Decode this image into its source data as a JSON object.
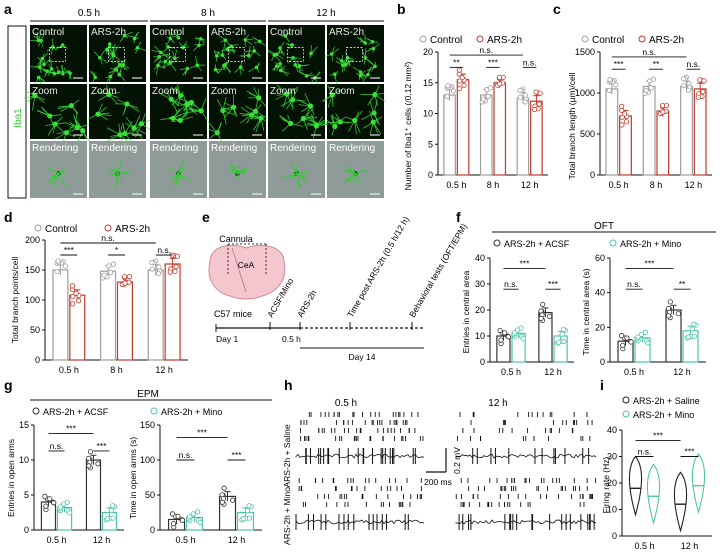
{
  "colors": {
    "control": "#9e9e9e",
    "ars": "#c0392b",
    "acsf": "#333333",
    "mino": "#4fc4a8",
    "saline": "#222222",
    "micro_green": "#39e039",
    "render_bg": "#8f9b98"
  },
  "panel_letters": [
    "a",
    "b",
    "c",
    "d",
    "e",
    "f",
    "g",
    "h",
    "i"
  ],
  "panelA": {
    "side_label": "Iba1",
    "times": [
      "0.5 h",
      "8 h",
      "12 h"
    ],
    "row1": [
      "Control",
      "ARS-2h",
      "Control",
      "ARS-2h",
      "Control",
      "ARS-2h"
    ],
    "row2_label": "Zoom",
    "row3_label": "Rendering"
  },
  "legend": {
    "control": "Control",
    "ars": "ARS-2h"
  },
  "sig": {
    "ns": "n.s.",
    "one": "*",
    "two": "**",
    "three": "***"
  },
  "panelB": {
    "ylabel": "Number of Iba1⁺ cells (/0.12 mm²)",
    "yticks": [
      "0",
      "5",
      "10",
      "15",
      "20"
    ],
    "xticks": [
      "0.5 h",
      "8 h",
      "12 h"
    ]
  },
  "panelC": {
    "ylabel": "Total branch length (μm)/cell",
    "yticks": [
      "0",
      "500",
      "1000",
      "1500"
    ],
    "xticks": [
      "0.5 h",
      "8 h",
      "12 h"
    ]
  },
  "panelD": {
    "ylabel": "Total branch points/cell",
    "yticks": [
      "0",
      "50",
      "100",
      "150",
      "200"
    ],
    "xticks": [
      "0.5 h",
      "8 h",
      "12 h"
    ]
  },
  "panelE": {
    "cannula": "Cannula",
    "cea": "CeA",
    "mice": "C57 mice",
    "events": [
      "ACSF/Mino",
      "ARS-2h",
      "Time post ARS-2h (0.5 h/12 h)",
      "Behavioral tests (OFT/EPM)"
    ],
    "day1": "Day 1",
    "t05": "0.5 h",
    "day14": "Day 14"
  },
  "panelF": {
    "title": "OFT",
    "legend_acsf": "ARS-2h + ACSF",
    "legend_mino": "ARS-2h + Mino",
    "ylabel1": "Entries in central area",
    "yticks1": [
      "0",
      "10",
      "20",
      "30",
      "40"
    ],
    "ylabel2": "Time in central area (s)",
    "yticks2": [
      "0",
      "20",
      "40",
      "60"
    ],
    "xticks": [
      "0.5 h",
      "12 h"
    ]
  },
  "panelG": {
    "title": "EPM",
    "legend_acsf": "ARS-2h + ACSF",
    "legend_mino": "ARS-2h + Mino",
    "ylabel1": "Entries in open arms",
    "yticks1": [
      "0",
      "5",
      "10",
      "15"
    ],
    "ylabel2": "Time in open arms (s)",
    "yticks2": [
      "0",
      "50",
      "100",
      "150"
    ],
    "xticks": [
      "0.5 h",
      "12 h"
    ]
  },
  "panelH": {
    "t1": "0.5 h",
    "t2": "12 h",
    "row1": "ARS-2h + Saline",
    "row2": "ARS-2h + Mino",
    "scale_v": "0.2 mV",
    "scale_t": "200 ms"
  },
  "panelI": {
    "legend_saline": "ARS-2h + Saline",
    "legend_mino": "ARS-2h + Mino",
    "ylabel": "Firing rate (Hz)",
    "yticks": [
      "0",
      "10",
      "20",
      "30",
      "40"
    ],
    "xticks": [
      "0.5 h",
      "12 h"
    ]
  },
  "chart_data": [
    {
      "panel": "b",
      "type": "bar",
      "categories": [
        "0.5 h",
        "8 h",
        "12 h"
      ],
      "series": [
        {
          "name": "Control",
          "values": [
            13,
            13,
            12.5
          ]
        },
        {
          "name": "ARS-2h",
          "values": [
            15.5,
            15,
            12
          ]
        }
      ],
      "ylabel": "Number of Iba1⁺ cells (/0.12 mm²)",
      "ylim": [
        0,
        20
      ]
    },
    {
      "panel": "c",
      "type": "bar",
      "categories": [
        "0.5 h",
        "8 h",
        "12 h"
      ],
      "series": [
        {
          "name": "Control",
          "values": [
            1050,
            1080,
            1080
          ]
        },
        {
          "name": "ARS-2h",
          "values": [
            720,
            780,
            1050
          ]
        }
      ],
      "ylabel": "Total branch length (μm)/cell",
      "ylim": [
        0,
        1500
      ]
    },
    {
      "panel": "d",
      "type": "bar",
      "categories": [
        "0.5 h",
        "8 h",
        "12 h"
      ],
      "series": [
        {
          "name": "Control",
          "values": [
            150,
            148,
            150
          ]
        },
        {
          "name": "ARS-2h",
          "values": [
            108,
            130,
            160
          ]
        }
      ],
      "ylabel": "Total branch points/cell",
      "ylim": [
        0,
        200
      ]
    },
    {
      "panel": "f1",
      "type": "bar",
      "categories": [
        "0.5 h",
        "12 h"
      ],
      "series": [
        {
          "name": "ARS-2h + ACSF",
          "values": [
            10,
            19
          ]
        },
        {
          "name": "ARS-2h + Mino",
          "values": [
            11,
            10
          ]
        }
      ],
      "ylabel": "Entries in central area",
      "ylim": [
        0,
        40
      ]
    },
    {
      "panel": "f2",
      "type": "bar",
      "categories": [
        "0.5 h",
        "12 h"
      ],
      "series": [
        {
          "name": "ARS-2h + ACSF",
          "values": [
            12,
            30
          ]
        },
        {
          "name": "ARS-2h + Mino",
          "values": [
            14,
            18
          ]
        }
      ],
      "ylabel": "Time in central area (s)",
      "ylim": [
        0,
        60
      ]
    },
    {
      "panel": "g1",
      "type": "bar",
      "categories": [
        "0.5 h",
        "12 h"
      ],
      "series": [
        {
          "name": "ARS-2h + ACSF",
          "values": [
            4,
            10
          ]
        },
        {
          "name": "ARS-2h + Mino",
          "values": [
            3.2,
            2.5
          ]
        }
      ],
      "ylabel": "Entries in open arms",
      "ylim": [
        0,
        15
      ]
    },
    {
      "panel": "g2",
      "type": "bar",
      "categories": [
        "0.5 h",
        "12 h"
      ],
      "series": [
        {
          "name": "ARS-2h + ACSF",
          "values": [
            15,
            48
          ]
        },
        {
          "name": "ARS-2h + Mino",
          "values": [
            18,
            25
          ]
        }
      ],
      "ylabel": "Time in open arms (s)",
      "ylim": [
        0,
        150
      ]
    },
    {
      "panel": "i",
      "type": "violin",
      "categories": [
        "0.5 h",
        "12 h"
      ],
      "series": [
        {
          "name": "ARS-2h + Saline",
          "values": [
            18,
            12
          ]
        },
        {
          "name": "ARS-2h + Mino",
          "values": [
            15,
            19
          ]
        }
      ],
      "ylabel": "Firing rate (Hz)",
      "ylim": [
        0,
        40
      ]
    }
  ]
}
